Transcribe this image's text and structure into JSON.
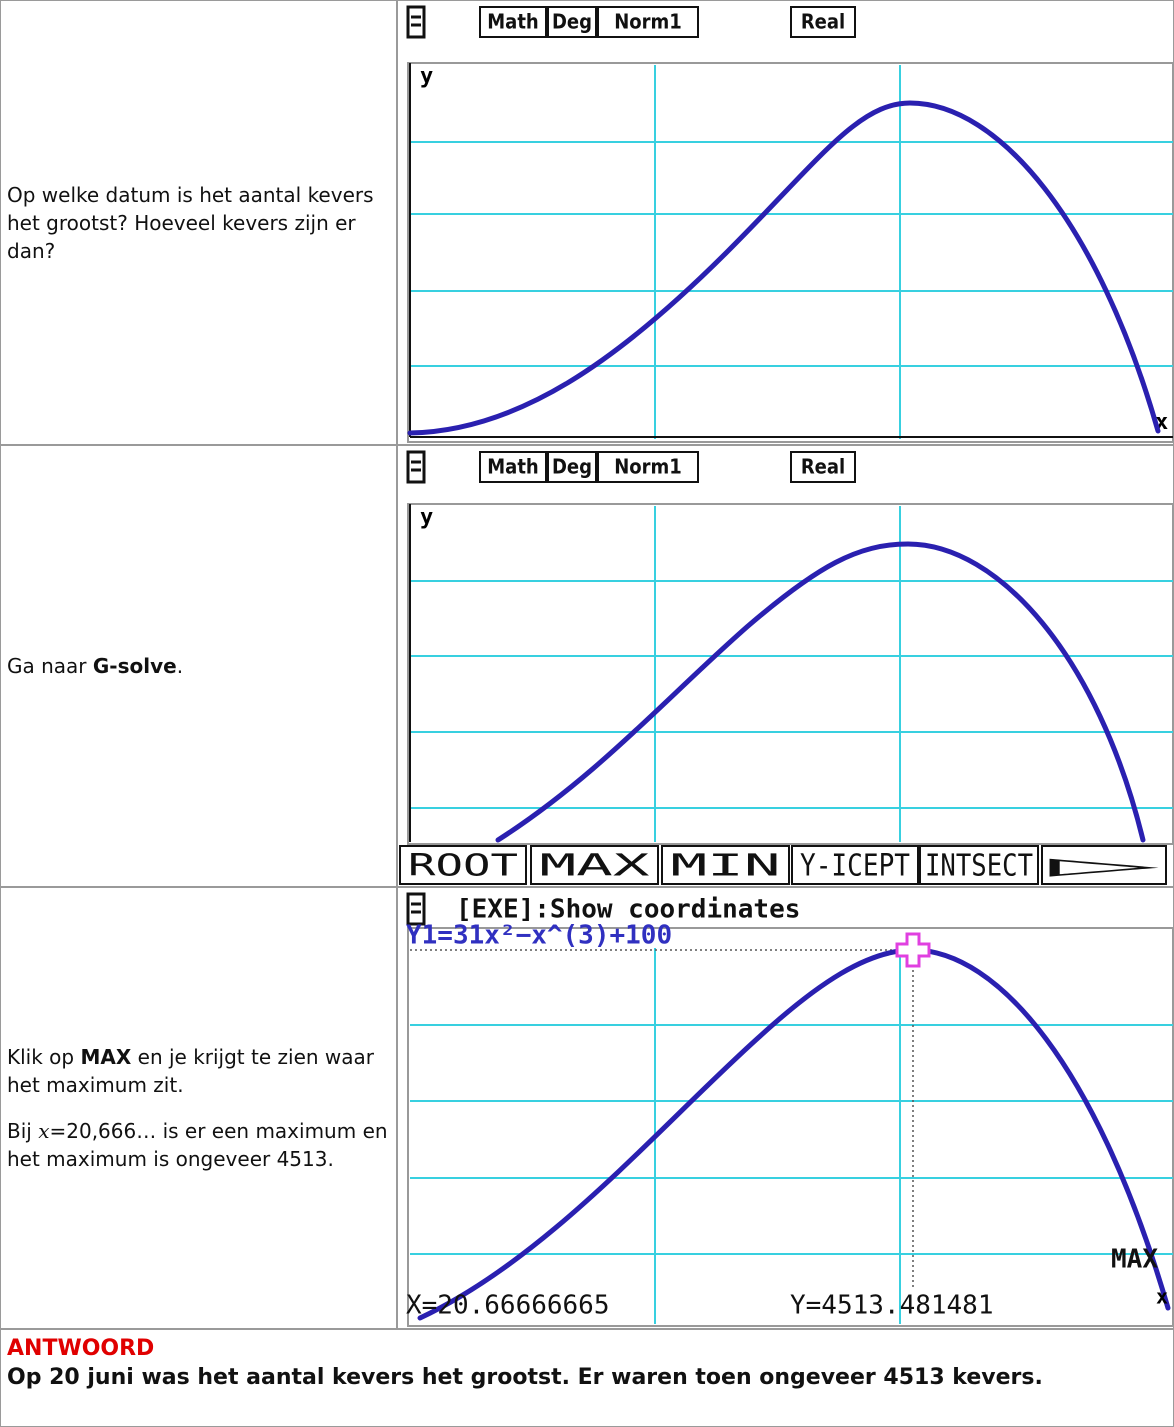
{
  "rows": [
    {
      "text": "Op welke datum is het aantal kevers het grootst? Hoeveel kevers zijn er dan?",
      "screen": {
        "status": [
          "Math",
          "Deg",
          "Norm1",
          "Real"
        ],
        "y_label": "y",
        "x_label": "x"
      }
    },
    {
      "text": [
        "Ga naar ",
        "G-solve",
        "."
      ],
      "screen": {
        "status": [
          "Math",
          "Deg",
          "Norm1",
          "Real"
        ],
        "y_label": "y",
        "menu": [
          "ROOT",
          "MAX",
          "MIN",
          "Y-ICEPT",
          "INTSECT",
          "▷"
        ]
      }
    },
    {
      "paragraphs": [
        [
          "Klik op ",
          "MAX",
          " en je krijgt te zien waar het maximum zit."
        ],
        [
          "Bij ",
          "x",
          "=20,666… is er een maximum en het maximum is ongeveer 4513."
        ]
      ],
      "screen": {
        "status": "[EXE]:Show coordinates",
        "function": "Y1=31x²−x^(3)+100",
        "max_label": "MAX",
        "x_label": "x",
        "x_readout": "X=20.66666665",
        "y_readout": "Y=4513.481481"
      }
    }
  ],
  "answer": {
    "heading": "ANTWOORD",
    "text": "Op 20 juni was het aantal kevers het grootst. Er waren toen ongeveer 4513 kevers."
  }
}
